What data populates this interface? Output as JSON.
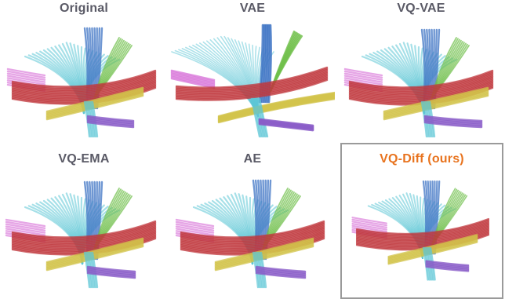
{
  "panels": [
    {
      "title": "Original",
      "highlight": false
    },
    {
      "title": "VAE",
      "highlight": false
    },
    {
      "title": "VQ-VAE",
      "highlight": false
    },
    {
      "title": "VQ-EMA",
      "highlight": false
    },
    {
      "title": "AE",
      "highlight": false
    },
    {
      "title": "VQ-Diff (ours)",
      "highlight": true
    }
  ],
  "colors": {
    "title": "#5a5a66",
    "highlight_title": "#e8731e",
    "highlight_border": "#9a9a9a",
    "cyan_bundle": "#5cc6d6",
    "blue_bundle": "#3f74c4",
    "green_bundle": "#6fbf4a",
    "red_bundle": "#c0383e",
    "yellow_bundle": "#d2c34a",
    "purple_bundle": "#8a5cc8",
    "pink_bundle": "#d877d9"
  }
}
